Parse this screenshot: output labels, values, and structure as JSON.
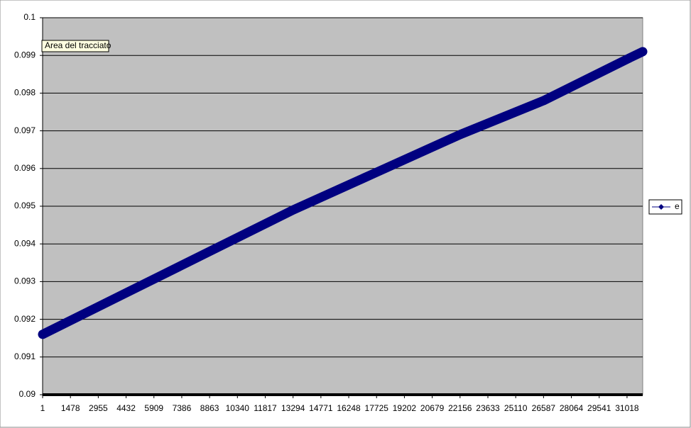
{
  "chart_data": {
    "type": "line",
    "annotation": "Area del tracciato",
    "x": [
      1,
      4432,
      8863,
      13294,
      17725,
      22156,
      26587,
      31018,
      31850
    ],
    "series": [
      {
        "name": "e",
        "color": "#000080",
        "values": [
          0.0916,
          0.0927,
          0.0938,
          0.0949,
          0.0959,
          0.0969,
          0.0978,
          0.0989,
          0.0991
        ]
      }
    ],
    "xlim": [
      1,
      31850
    ],
    "xticks": [
      1,
      1478,
      2955,
      4432,
      5909,
      7386,
      8863,
      10340,
      11817,
      13294,
      14771,
      16248,
      17725,
      19202,
      20679,
      22156,
      23633,
      25110,
      26587,
      28064,
      29541,
      31018
    ],
    "ylim": [
      0.09,
      0.1
    ],
    "yticks": [
      0.09,
      0.091,
      0.092,
      0.093,
      0.094,
      0.095,
      0.096,
      0.097,
      0.098,
      0.099,
      0.1
    ],
    "grid": true,
    "plot_color": "#c0c0c0",
    "legend": "right"
  }
}
